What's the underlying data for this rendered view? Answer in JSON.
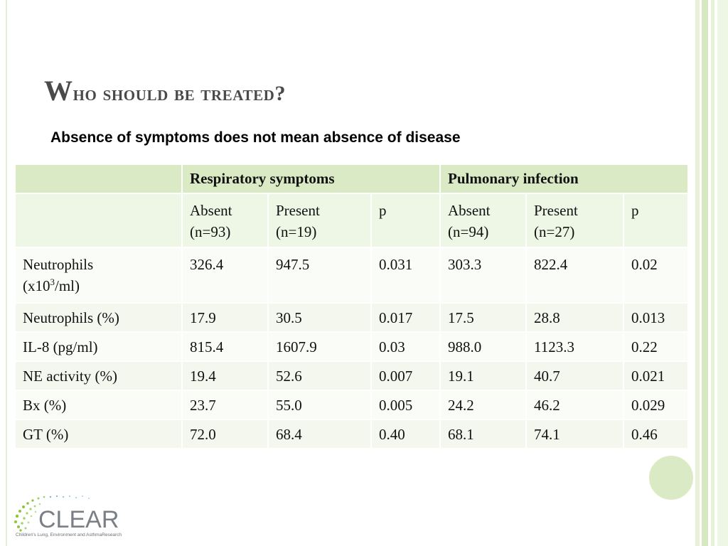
{
  "slide": {
    "title": "Who should be treated?",
    "subtitle": "Absence of symptoms does not mean absence of disease"
  },
  "table": {
    "groups": [
      "Respiratory symptoms",
      "Pulmonary infection"
    ],
    "subheaders": [
      {
        "line1": "Absent",
        "line2": "(n=93)"
      },
      {
        "line1": "Present",
        "line2": "(n=19)"
      },
      {
        "line1": "p",
        "line2": ""
      },
      {
        "line1": "Absent",
        "line2": "(n=94)"
      },
      {
        "line1": "Present",
        "line2": "(n=27)"
      },
      {
        "line1": "p",
        "line2": ""
      }
    ],
    "rows": [
      {
        "label": "Neutrophils",
        "label_line2_pre": "(x10",
        "label_sup": "3",
        "label_line2_post": "/ml)",
        "values": [
          "326.4",
          "947.5",
          "0.031",
          "303.3",
          "822.4",
          "0.02"
        ]
      },
      {
        "label": "Neutrophils (%)",
        "values": [
          "17.9",
          "30.5",
          "0.017",
          "17.5",
          "28.8",
          "0.013"
        ]
      },
      {
        "label": "IL-8 (pg/ml)",
        "values": [
          "815.4",
          "1607.9",
          "0.03",
          "988.0",
          "1123.3",
          "0.22"
        ]
      },
      {
        "label": "NE activity (%)",
        "values": [
          "19.4",
          "52.6",
          "0.007",
          "19.1",
          "40.7",
          "0.021"
        ]
      },
      {
        "label": "Bx (%)",
        "values": [
          "23.7",
          "55.0",
          "0.005",
          "24.2",
          "46.2",
          "0.029"
        ]
      },
      {
        "label": "GT (%)",
        "values": [
          "72.0",
          "68.4",
          "0.40",
          "68.1",
          "74.1",
          "0.46"
        ]
      }
    ]
  },
  "logo": {
    "name": "CLEAR",
    "tagline": "Children's Lung, Environment and AsthmaResearch"
  },
  "colors": {
    "header_green": "#d9eac4",
    "light_green": "#eef6e6",
    "title_gray": "#4a4a4a"
  }
}
